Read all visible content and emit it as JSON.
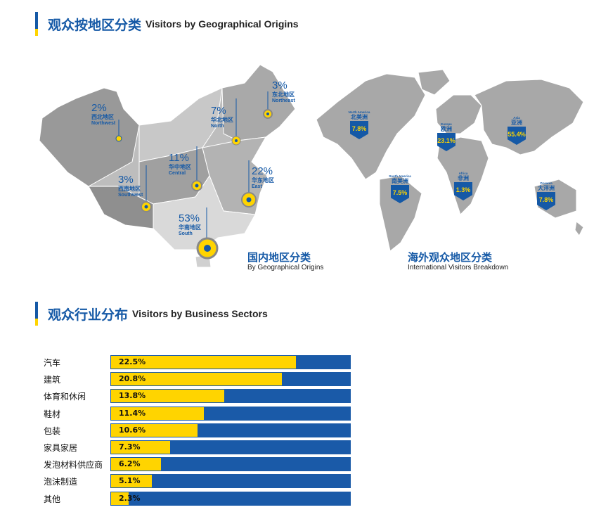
{
  "section1": {
    "title_zh": "观众按地区分类",
    "title_en": "Visitors by Geographical Origins"
  },
  "domestic": {
    "caption_zh": "国内地区分类",
    "caption_en": "By Geographical Origins",
    "regions": [
      {
        "pct": "2%",
        "zh": "西北地区",
        "en": "Northwest"
      },
      {
        "pct": "3%",
        "zh": "东北地区",
        "en": "Northeast"
      },
      {
        "pct": "7%",
        "zh": "华北地区",
        "en": "North"
      },
      {
        "pct": "11%",
        "zh": "华中地区",
        "en": "Central"
      },
      {
        "pct": "3%",
        "zh": "西南地区",
        "en": "Southwest"
      },
      {
        "pct": "22%",
        "zh": "华东地区",
        "en": "East"
      },
      {
        "pct": "53%",
        "zh": "华南地区",
        "en": "South"
      }
    ]
  },
  "international": {
    "caption_zh": "海外观众地区分类",
    "caption_en": "International Visitors Breakdown",
    "regions": [
      {
        "en": "North America",
        "zh": "北美洲",
        "pct": "7.8%"
      },
      {
        "en": "Europe",
        "zh": "欧洲",
        "pct": "23.1%"
      },
      {
        "en": "Asia",
        "zh": "亚洲",
        "pct": "55.4%"
      },
      {
        "en": "South America",
        "zh": "南美洲",
        "pct": "7.5%"
      },
      {
        "en": "Africa",
        "zh": "非洲",
        "pct": "1.3%"
      },
      {
        "en": "Oceania",
        "zh": "大洋洲",
        "pct": "7.8%"
      }
    ]
  },
  "section2": {
    "title_zh": "观众行业分布",
    "title_en": "Visitors by Business Sectors"
  },
  "chart_data": [
    {
      "type": "bar",
      "categories": [
        "华南地区",
        "华东地区",
        "华中地区",
        "华北地区",
        "东北地区",
        "西南地区",
        "西北地区"
      ],
      "values": [
        53,
        22,
        11,
        7,
        3,
        3,
        2
      ]
    },
    {
      "type": "bar",
      "categories": [
        "亚洲",
        "欧洲",
        "北美洲",
        "大洋洲",
        "南美洲",
        "非洲"
      ],
      "values": [
        55.4,
        23.1,
        7.8,
        7.8,
        7.5,
        1.3
      ]
    },
    {
      "type": "bar",
      "orientation": "horizontal",
      "categories": [
        "汽车",
        "建筑",
        "体育和休闲",
        "鞋材",
        "包装",
        "家具家居",
        "发泡材料供应商",
        "泡沫制造",
        "其他"
      ],
      "values": [
        22.5,
        20.8,
        13.8,
        11.4,
        10.6,
        7.3,
        6.2,
        5.1,
        2.3
      ],
      "value_labels": [
        "22.5%",
        "20.8%",
        "13.8%",
        "11.4%",
        "10.6%",
        "7.3%",
        "6.2%",
        "5.1%",
        "2.3%"
      ],
      "xlim": [
        0,
        29
      ],
      "colors": {
        "fill": "#ffd400",
        "track": "#1a5aa8"
      }
    }
  ]
}
